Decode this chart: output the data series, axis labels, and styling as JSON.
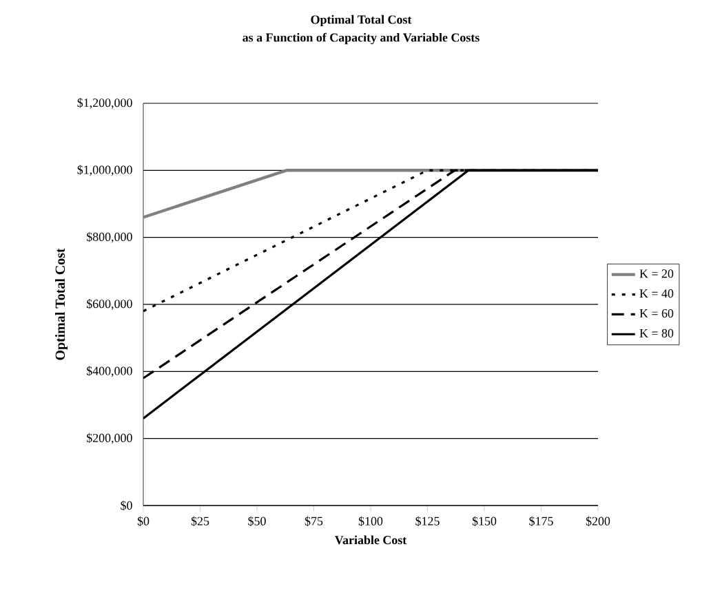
{
  "chart_data": {
    "type": "line",
    "title": "Optimal Total Cost",
    "subtitle": "as a Function of Capacity and Variable Costs",
    "xlabel": "Variable Cost",
    "ylabel": "Optimal Total Cost",
    "xlim": [
      0,
      200
    ],
    "xticks": [
      {
        "value": 0,
        "label": "$0"
      },
      {
        "value": 25,
        "label": "$25"
      },
      {
        "value": 50,
        "label": "$50"
      },
      {
        "value": 75,
        "label": "$75"
      },
      {
        "value": 100,
        "label": "$100"
      },
      {
        "value": 125,
        "label": "$125"
      },
      {
        "value": 150,
        "label": "$150"
      },
      {
        "value": 175,
        "label": "$175"
      },
      {
        "value": 200,
        "label": "$200"
      }
    ],
    "ylim": [
      0,
      1200000
    ],
    "yticks": [
      {
        "value": 0,
        "label": "$0"
      },
      {
        "value": 200000,
        "label": "$200,000"
      },
      {
        "value": 400000,
        "label": "$400,000"
      },
      {
        "value": 600000,
        "label": "$600,000"
      },
      {
        "value": 800000,
        "label": "$800,000"
      },
      {
        "value": 1000000,
        "label": "$1,000,000"
      },
      {
        "value": 1200000,
        "label": "$1,200,000"
      }
    ],
    "grid": "y",
    "legend": "right",
    "marker": "none",
    "series": [
      {
        "name": "K = 20",
        "color": "#808080",
        "line_style": "solid",
        "x": [
          0,
          63,
          200
        ],
        "values": [
          860000,
          1000000,
          1000000
        ]
      },
      {
        "name": "K = 40",
        "color": "#000000",
        "line_style": "dotted",
        "x": [
          0,
          125,
          200
        ],
        "values": [
          580000,
          1000000,
          1000000
        ]
      },
      {
        "name": "K = 60",
        "color": "#000000",
        "line_style": "dashed",
        "x": [
          0,
          137,
          200
        ],
        "values": [
          380000,
          1000000,
          1000000
        ]
      },
      {
        "name": "K = 80",
        "color": "#000000",
        "line_style": "solid",
        "x": [
          0,
          143,
          200
        ],
        "values": [
          260000,
          1000000,
          1000000
        ]
      }
    ]
  }
}
